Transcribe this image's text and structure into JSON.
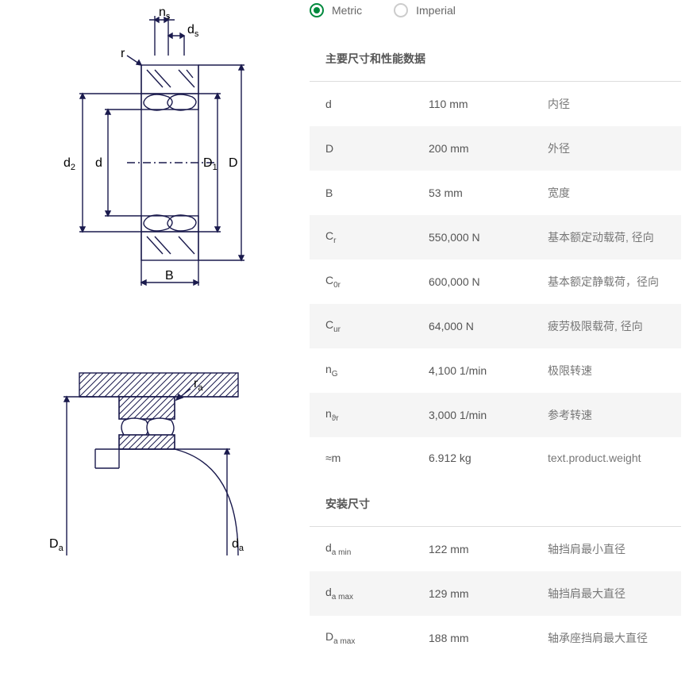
{
  "units": {
    "metric_label": "Metric",
    "imperial_label": "Imperial",
    "selected": "metric"
  },
  "sections": [
    {
      "title": "主要尺寸和性能数据",
      "rows": [
        {
          "symbol_html": "d",
          "value": "110 mm",
          "desc": "内径",
          "alt": false
        },
        {
          "symbol_html": "D",
          "value": "200 mm",
          "desc": "外径",
          "alt": true
        },
        {
          "symbol_html": "B",
          "value": "53 mm",
          "desc": "宽度",
          "alt": false
        },
        {
          "symbol_html": "C<sub>r</sub>",
          "value": "550,000 N",
          "desc": "基本额定动载荷, 径向",
          "alt": true
        },
        {
          "symbol_html": "C<sub>0r</sub>",
          "value": "600,000 N",
          "desc": "基本额定静载荷，径向",
          "alt": false
        },
        {
          "symbol_html": "C<sub>ur</sub>",
          "value": "64,000 N",
          "desc": "疲劳极限载荷, 径向",
          "alt": true
        },
        {
          "symbol_html": "n<sub>G</sub>",
          "value": "4,100 1/min",
          "desc": "极限转速",
          "alt": false
        },
        {
          "symbol_html": "n<sub>ϑr</sub>",
          "value": "3,000 1/min",
          "desc": "参考转速",
          "alt": true
        },
        {
          "symbol_html": "≈m",
          "value": "6.912 kg",
          "desc": "text.product.weight",
          "alt": false
        }
      ]
    },
    {
      "title": "安装尺寸",
      "rows": [
        {
          "symbol_html": "d<sub>a min</sub>",
          "value": "122 mm",
          "desc": "轴挡肩最小直径",
          "alt": false
        },
        {
          "symbol_html": "d<sub>a max</sub>",
          "value": "129 mm",
          "desc": "轴挡肩最大直径",
          "alt": true
        },
        {
          "symbol_html": "D<sub>a max</sub>",
          "value": "188 mm",
          "desc": "轴承座挡肩最大直径",
          "alt": false
        }
      ]
    }
  ],
  "diagram1_labels": {
    "ns": "n",
    "ns_sub": "s",
    "ds": "d",
    "ds_sub": "s",
    "r": "r",
    "d2": "d",
    "d2_sub": "2",
    "d": "d",
    "D1": "D",
    "D1_sub": "1",
    "D": "D",
    "B": "B"
  },
  "diagram2_labels": {
    "ra": "r",
    "ra_sub": "a",
    "Da": "D",
    "Da_sub": "a",
    "da": "d",
    "da_sub": "a"
  },
  "colors": {
    "line": "#1a1a4d",
    "hatch": "#1a1a4d",
    "accent": "#00893d",
    "row_alt": "#f5f5f5",
    "text": "#555"
  }
}
